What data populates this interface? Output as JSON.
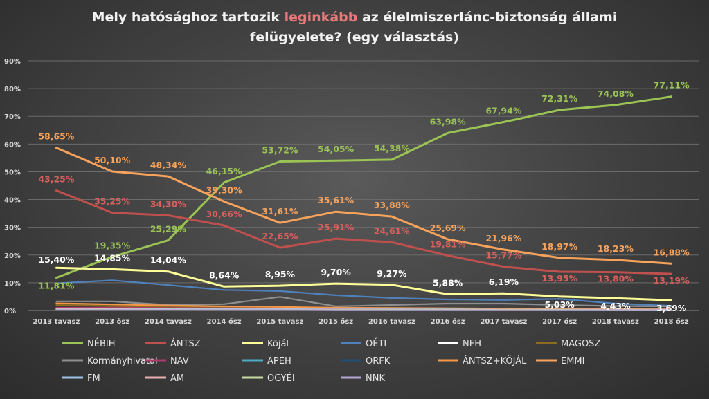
{
  "chart_data": {
    "type": "line",
    "title_parts": [
      "Mely hatósághoz tartozik ",
      "leginkább",
      " az élelmiszerlánc-biztonság állami",
      "felügyelete? (egy választás)"
    ],
    "x": [
      "2013 tavasz",
      "2013 ősz",
      "2014 tavasz",
      "2014 ősz",
      "2015 tavasz",
      "2015 ősz",
      "2016 tavasz",
      "2016 ősz",
      "2017 tavasz",
      "2017 ősz",
      "2018 tavasz",
      "2018 ősz"
    ],
    "ylim": [
      0,
      90
    ],
    "yticks": [
      "0%",
      "10%",
      "20%",
      "30%",
      "40%",
      "50%",
      "60%",
      "70%",
      "80%",
      "90%"
    ],
    "grid": true,
    "legend_position": "bottom",
    "series": [
      {
        "name": "NÉBIH",
        "color": "#9bc454",
        "values": [
          11.81,
          19.35,
          25.29,
          46.15,
          53.72,
          54.05,
          54.38,
          63.98,
          67.94,
          72.31,
          74.08,
          77.11
        ],
        "labels": [
          "11,81%",
          "19,35%",
          "25,29%",
          "46,15%",
          "53,72%",
          "54,05%",
          "54,38%",
          "63,98%",
          "67,94%",
          "72,31%",
          "74,08%",
          "77,11%"
        ]
      },
      {
        "name": "ÁNTSZ",
        "color": "#c0504d",
        "values": [
          43.25,
          35.25,
          34.3,
          30.66,
          22.65,
          25.91,
          24.61,
          19.81,
          15.77,
          13.95,
          13.8,
          13.19
        ],
        "labels": [
          "43,25%",
          "35,25%",
          "34,30%",
          "30,66%",
          "22,65%",
          "25,91%",
          "24,61%",
          "19,81%",
          "15,77%",
          "13,95%",
          "13,80%",
          "13,19%"
        ]
      },
      {
        "name": "Köjál",
        "color": "#ffff99",
        "values": [
          15.4,
          14.85,
          14.04,
          8.64,
          8.95,
          9.7,
          9.27,
          5.88,
          6.19,
          5.03,
          4.43,
          3.69
        ],
        "labels": [
          "15,40%",
          "14,85%",
          "14,04%",
          "8,64%",
          "8,95%",
          "9,70%",
          "9,27%",
          "5,88%",
          "6,19%",
          "5,03%",
          "4,43%",
          "3,69%"
        ]
      },
      {
        "name": "OÉTI",
        "color": "#4f81bd",
        "values": [
          9.8,
          10.9,
          9.2,
          7.4,
          7.0,
          5.5,
          4.5,
          4.0,
          3.8,
          4.2,
          2.5,
          1.7
        ]
      },
      {
        "name": "NFH",
        "color": "#ffffff",
        "values": [
          0.8,
          0.6,
          0.5,
          0.4,
          0.3,
          0.3,
          0.3,
          0.3,
          0.2,
          0.2,
          0.2,
          0.2
        ]
      },
      {
        "name": "MAGOSZ",
        "color": "#8c6d1f",
        "values": [
          2.0,
          1.6,
          1.3,
          1.2,
          1.0,
          1.0,
          0.8,
          0.8,
          0.7,
          0.6,
          0.5,
          0.4
        ]
      },
      {
        "name": "Kormányhivatal",
        "color": "#8e8e8e",
        "values": [
          3.3,
          3.3,
          2.0,
          2.3,
          4.9,
          1.5,
          2.0,
          2.5,
          2.5,
          2.0,
          1.6,
          1.5
        ]
      },
      {
        "name": "NAV",
        "color": "#b03a6e",
        "values": [
          1.0,
          1.0,
          0.9,
          0.8,
          0.8,
          0.7,
          0.6,
          0.6,
          0.6,
          0.5,
          0.5,
          0.4
        ]
      },
      {
        "name": "APEH",
        "color": "#4bacc6",
        "values": [
          0.5,
          0.4,
          0.4,
          0.3,
          0.3,
          0.2,
          0.2,
          0.2,
          0.2,
          0.1,
          0.1,
          0.1
        ]
      },
      {
        "name": "ORFK",
        "color": "#1f4e79",
        "values": [
          0.6,
          0.5,
          0.5,
          0.4,
          0.4,
          0.3,
          0.3,
          0.3,
          0.3,
          0.2,
          0.2,
          0.2
        ]
      },
      {
        "name": "ÁNTSZ+KÖJÁL",
        "color": "#f79646",
        "values": [
          2.6,
          2.2,
          1.8,
          1.5,
          1.3,
          1.0,
          0.9,
          0.8,
          0.7,
          0.5,
          0.5,
          0.4
        ]
      },
      {
        "name": "EMMI",
        "color": "#f7a35c",
        "values": [
          58.65,
          50.1,
          48.34,
          39.3,
          31.61,
          35.61,
          33.88,
          25.69,
          21.96,
          18.97,
          18.23,
          16.88
        ],
        "labels": [
          "58,65%",
          "50,10%",
          "48,34%",
          "39,30%",
          "31,61%",
          "35,61%",
          "33,88%",
          "25,69%",
          "21,96%",
          "18,97%",
          "18,23%",
          "16,88%"
        ]
      },
      {
        "name": "FM",
        "color": "#9dc3e6",
        "values": [
          0.7,
          0.6,
          0.6,
          0.5,
          0.5,
          0.4,
          0.4,
          0.4,
          0.3,
          0.3,
          0.3,
          0.3
        ]
      },
      {
        "name": "AM",
        "color": "#e6b0b0",
        "values": [
          0.4,
          0.4,
          0.3,
          0.3,
          0.3,
          0.3,
          0.2,
          0.2,
          0.2,
          0.2,
          0.2,
          0.2
        ]
      },
      {
        "name": "OGYÉI",
        "color": "#c5d9a0",
        "values": [
          0.3,
          0.3,
          0.3,
          0.2,
          0.2,
          0.2,
          0.2,
          0.2,
          0.2,
          0.2,
          0.1,
          0.1
        ]
      },
      {
        "name": "NNK",
        "color": "#b4a7d6",
        "values": [
          0.2,
          0.2,
          0.2,
          0.2,
          0.2,
          0.1,
          0.1,
          0.1,
          0.1,
          0.1,
          0.1,
          0.1
        ]
      }
    ]
  }
}
